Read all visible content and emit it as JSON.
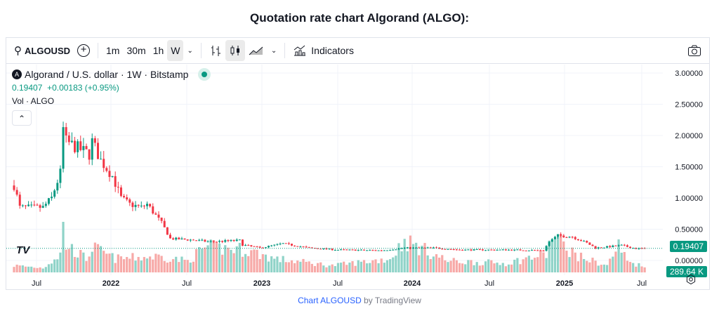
{
  "page_title": "Quotation rate chart Algorand (ALGO):",
  "toolbar": {
    "symbol": "ALGOUSD",
    "intervals": [
      "1m",
      "30m",
      "1h",
      "W"
    ],
    "active_interval": "W",
    "indicators_label": "Indicators"
  },
  "legend": {
    "title": "Algorand / U.S. dollar · 1W · Bitstamp",
    "price": "0.19407",
    "change": "+0.00183 (+0.95%)",
    "volume_label": "Vol · ALGO"
  },
  "price_axis": {
    "ticks": [
      "3.00000",
      "2.50000",
      "2.00000",
      "1.50000",
      "1.00000",
      "0.50000",
      "0.00000"
    ],
    "last_price": "0.19407",
    "last_volume": "289.64 K"
  },
  "time_axis": {
    "ticks": [
      "Jul",
      "2022",
      "Jul",
      "2023",
      "Jul",
      "2024",
      "Jul",
      "2025",
      "Jul"
    ]
  },
  "colors": {
    "up": "#089981",
    "down": "#f23645",
    "vol_up": "#8fd3c8",
    "vol_down": "#f7a9a7"
  },
  "footer": {
    "link": "Chart ALGOUSD",
    "suffix": " by TradingView"
  },
  "chart_data": {
    "type": "candlestick",
    "interval": "1W",
    "ylim": [
      0,
      3
    ],
    "price_path_week_value": [
      [
        0,
        1.2
      ],
      [
        2,
        0.85
      ],
      [
        10,
        0.85
      ],
      [
        13,
        1.0
      ],
      [
        16,
        1.4
      ],
      [
        17,
        2.1
      ],
      [
        18,
        1.9
      ],
      [
        22,
        1.8
      ],
      [
        26,
        1.7
      ],
      [
        27,
        1.9
      ],
      [
        30,
        1.6
      ],
      [
        34,
        1.35
      ],
      [
        37,
        1.0
      ],
      [
        40,
        0.9
      ],
      [
        44,
        0.85
      ],
      [
        46,
        0.9
      ],
      [
        51,
        0.6
      ],
      [
        54,
        0.35
      ],
      [
        61,
        0.33
      ],
      [
        68,
        0.3
      ],
      [
        78,
        0.32
      ],
      [
        79,
        0.25
      ],
      [
        85,
        0.2
      ],
      [
        93,
        0.27
      ],
      [
        102,
        0.2
      ],
      [
        112,
        0.17
      ],
      [
        127,
        0.16
      ],
      [
        135,
        0.2
      ],
      [
        146,
        0.2
      ],
      [
        154,
        0.17
      ],
      [
        171,
        0.17
      ],
      [
        183,
        0.16
      ],
      [
        185,
        0.3
      ],
      [
        188,
        0.4
      ],
      [
        193,
        0.38
      ],
      [
        198,
        0.28
      ],
      [
        201,
        0.2
      ],
      [
        210,
        0.24
      ],
      [
        215,
        0.19
      ],
      [
        218,
        0.194
      ]
    ],
    "volume_path_week_rel": [
      [
        0,
        0.15
      ],
      [
        10,
        0.1
      ],
      [
        16,
        0.4
      ],
      [
        17,
        1.0
      ],
      [
        18,
        0.6
      ],
      [
        25,
        0.3
      ],
      [
        27,
        0.55
      ],
      [
        35,
        0.3
      ],
      [
        50,
        0.35
      ],
      [
        60,
        0.25
      ],
      [
        66,
        0.55
      ],
      [
        80,
        0.5
      ],
      [
        90,
        0.3
      ],
      [
        110,
        0.15
      ],
      [
        130,
        0.3
      ],
      [
        135,
        0.7
      ],
      [
        150,
        0.25
      ],
      [
        170,
        0.2
      ],
      [
        184,
        0.4
      ],
      [
        186,
        0.8
      ],
      [
        195,
        0.35
      ],
      [
        205,
        0.15
      ],
      [
        209,
        0.6
      ],
      [
        212,
        0.25
      ],
      [
        218,
        0.12
      ]
    ]
  }
}
